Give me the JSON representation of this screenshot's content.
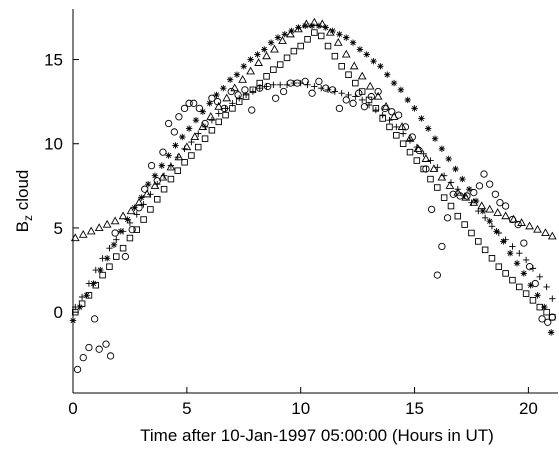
{
  "chart_data": {
    "type": "scatter",
    "xlabel": "Time after 10-Jan-1997 05:00:00 (Hours in UT)",
    "ylabel": {
      "main": "B",
      "sub": "z",
      "rest": " cloud"
    },
    "xlim": [
      0,
      21.3
    ],
    "ylim": [
      -4.8,
      18
    ],
    "xticks": [
      0,
      5,
      10,
      15,
      20
    ],
    "yticks": [
      0,
      5,
      10,
      15
    ],
    "grid": false,
    "legend": "none",
    "series": [
      {
        "marker": "circle",
        "x": [
          0.2,
          0.45,
          0.7,
          0.95,
          1.15,
          1.45,
          1.65,
          1.85,
          2.3,
          2.6,
          2.9,
          3.15,
          3.45,
          3.7,
          3.95,
          4.2,
          4.45,
          4.65,
          4.9,
          5.1,
          5.3,
          5.55,
          5.8,
          6.1,
          6.35,
          6.65,
          6.95,
          7.25,
          7.55,
          7.85,
          8.2,
          8.55,
          8.9,
          9.25,
          9.55,
          9.85,
          10.2,
          10.5,
          10.8,
          11.1,
          11.4,
          11.7,
          12.0,
          12.3,
          12.55,
          12.8,
          13.1,
          13.4,
          13.7,
          14.0,
          14.3,
          14.6,
          14.9,
          15.2,
          15.5,
          15.75,
          16.0,
          16.2,
          16.45,
          16.7,
          17.0,
          17.3,
          17.6,
          17.85,
          18.05,
          18.3,
          18.55,
          18.75,
          19.0,
          19.3,
          19.55,
          19.8,
          20.05,
          20.3,
          20.6,
          20.85,
          21.05
        ],
        "y": [
          -3.4,
          -2.7,
          -2.1,
          -0.4,
          -2.2,
          -1.9,
          -2.6,
          4.7,
          3.3,
          4.9,
          6.2,
          7.3,
          8.7,
          7.8,
          9.5,
          11.2,
          10.7,
          11.6,
          12.1,
          12.4,
          12.4,
          12.1,
          11.2,
          12.7,
          12.5,
          12.1,
          13.1,
          12.9,
          13.2,
          12.0,
          13.3,
          13.4,
          12.7,
          13.1,
          13.6,
          13.6,
          13.7,
          13.0,
          13.7,
          13.3,
          13.2,
          12.1,
          12.6,
          12.4,
          13.0,
          12.2,
          12.8,
          13.1,
          12.1,
          11.9,
          11.7,
          11.0,
          10.4,
          9.6,
          8.5,
          6.1,
          2.2,
          3.9,
          5.6,
          7.0,
          6.9,
          6.9,
          7.1,
          7.5,
          8.2,
          7.6,
          7.0,
          6.5,
          6.3,
          5.5,
          5.2,
          4.1,
          2.7,
          1.7,
          -0.4,
          -0.6,
          -0.3
        ]
      },
      {
        "marker": "asterisk",
        "x": [
          0.0,
          0.3,
          0.6,
          0.9,
          1.2,
          1.5,
          1.8,
          2.1,
          2.4,
          2.7,
          3.0,
          3.3,
          3.6,
          3.9,
          4.2,
          4.5,
          4.8,
          5.1,
          5.4,
          5.7,
          6.0,
          6.3,
          6.6,
          6.9,
          7.2,
          7.5,
          7.8,
          8.1,
          8.4,
          8.7,
          9.0,
          9.3,
          9.6,
          9.9,
          10.2,
          10.5,
          10.8,
          11.1,
          11.4,
          11.7,
          12.0,
          12.3,
          12.6,
          12.9,
          13.2,
          13.5,
          13.8,
          14.1,
          14.4,
          14.7,
          15.0,
          15.3,
          15.6,
          15.9,
          16.2,
          16.5,
          16.8,
          17.1,
          17.4,
          17.7,
          18.0,
          18.3,
          18.6,
          18.9,
          19.2,
          19.5,
          19.8,
          20.1,
          20.4,
          20.7,
          21.0
        ],
        "y": [
          -0.5,
          0.3,
          1.0,
          1.7,
          2.5,
          3.2,
          4.0,
          4.8,
          5.5,
          6.2,
          6.8,
          7.6,
          8.1,
          8.7,
          9.3,
          9.9,
          10.4,
          10.9,
          11.4,
          11.9,
          12.4,
          12.9,
          13.3,
          13.8,
          14.1,
          14.6,
          15.0,
          15.3,
          15.6,
          16.0,
          16.3,
          16.5,
          16.7,
          16.9,
          17.0,
          17.0,
          17.0,
          16.9,
          16.7,
          16.5,
          16.3,
          16.0,
          15.6,
          15.3,
          14.9,
          14.6,
          14.1,
          13.6,
          13.2,
          12.6,
          12.1,
          11.5,
          10.9,
          10.3,
          9.7,
          9.1,
          8.5,
          7.9,
          7.3,
          6.6,
          6.0,
          5.4,
          4.8,
          4.2,
          3.5,
          2.9,
          2.3,
          1.6,
          1.0,
          0.3,
          -1.2
        ]
      },
      {
        "marker": "triangle",
        "x": [
          0.1,
          0.45,
          0.8,
          1.15,
          1.5,
          1.85,
          2.2,
          2.55,
          2.9,
          3.25,
          3.6,
          3.95,
          4.3,
          4.65,
          5.0,
          5.35,
          5.7,
          6.05,
          6.4,
          6.75,
          7.1,
          7.45,
          7.8,
          8.15,
          8.5,
          8.85,
          9.2,
          9.55,
          9.9,
          10.25,
          10.6,
          10.95,
          11.3,
          11.65,
          12.0,
          12.35,
          12.7,
          13.05,
          13.4,
          13.75,
          14.1,
          14.45,
          14.8,
          15.15,
          15.5,
          15.85,
          16.2,
          16.55,
          16.9,
          17.25,
          17.6,
          17.95,
          18.3,
          18.65,
          19.0,
          19.35,
          19.7,
          20.05,
          20.4,
          20.75,
          21.05
        ],
        "y": [
          4.4,
          4.6,
          4.8,
          5.0,
          5.2,
          5.4,
          5.7,
          6.0,
          6.5,
          7.0,
          7.5,
          8.0,
          8.6,
          9.2,
          9.8,
          10.4,
          11.0,
          11.6,
          12.2,
          12.7,
          13.3,
          13.8,
          14.3,
          14.8,
          15.2,
          15.6,
          16.1,
          16.5,
          16.8,
          17.1,
          17.2,
          17.1,
          16.6,
          16.0,
          15.3,
          14.6,
          14.0,
          13.4,
          12.8,
          12.2,
          11.6,
          11.0,
          10.3,
          9.7,
          9.1,
          8.5,
          8.0,
          7.5,
          7.1,
          6.8,
          6.5,
          6.3,
          6.1,
          5.9,
          5.7,
          5.5,
          5.3,
          5.1,
          4.9,
          4.7,
          4.5
        ]
      },
      {
        "marker": "square",
        "x": [
          0.1,
          0.4,
          0.7,
          1.0,
          1.3,
          1.6,
          1.9,
          2.2,
          2.5,
          2.8,
          3.1,
          3.4,
          3.7,
          4.0,
          4.3,
          4.6,
          4.9,
          5.2,
          5.5,
          5.8,
          6.1,
          6.4,
          6.7,
          7.0,
          7.3,
          7.6,
          7.9,
          8.2,
          8.5,
          8.8,
          9.1,
          9.4,
          9.7,
          10.0,
          10.3,
          10.6,
          10.9,
          11.2,
          11.5,
          11.8,
          12.1,
          12.4,
          12.7,
          13.0,
          13.3,
          13.6,
          13.9,
          14.2,
          14.5,
          14.8,
          15.1,
          15.4,
          15.7,
          16.0,
          16.3,
          16.6,
          16.9,
          17.2,
          17.5,
          17.8,
          18.1,
          18.4,
          18.7,
          19.0,
          19.3,
          19.6,
          19.9,
          20.2,
          20.5,
          20.8,
          21.05
        ],
        "y": [
          0.0,
          0.5,
          1.0,
          1.6,
          2.2,
          2.7,
          3.3,
          3.8,
          4.4,
          4.9,
          5.5,
          6.1,
          6.7,
          7.3,
          7.9,
          8.4,
          8.9,
          9.3,
          9.8,
          10.3,
          10.8,
          11.3,
          11.7,
          12.1,
          12.5,
          12.8,
          13.2,
          13.6,
          14.0,
          14.4,
          14.7,
          15.1,
          15.5,
          15.8,
          16.2,
          16.6,
          16.4,
          15.8,
          15.2,
          14.6,
          14.1,
          13.6,
          13.1,
          12.6,
          12.1,
          11.5,
          11.0,
          10.5,
          10.0,
          9.5,
          9.0,
          8.5,
          7.9,
          7.4,
          6.8,
          6.3,
          5.7,
          5.2,
          4.7,
          4.2,
          3.7,
          3.2,
          2.7,
          2.3,
          1.9,
          1.5,
          1.1,
          0.7,
          0.3,
          0.0,
          -0.3
        ]
      },
      {
        "marker": "plus",
        "x": [
          0.1,
          0.4,
          0.7,
          1.0,
          1.3,
          1.6,
          1.9,
          2.2,
          2.5,
          2.8,
          3.1,
          3.4,
          3.7,
          4.0,
          4.3,
          4.6,
          4.9,
          5.2,
          5.5,
          5.8,
          6.1,
          6.4,
          6.7,
          7.0,
          7.3,
          7.6,
          7.9,
          8.2,
          8.5,
          8.8,
          9.1,
          9.4,
          9.7,
          10.0,
          10.3,
          10.6,
          10.9,
          11.2,
          11.5,
          11.8,
          12.1,
          12.4,
          12.7,
          13.0,
          13.3,
          13.6,
          13.9,
          14.2,
          14.5,
          14.8,
          15.1,
          15.4,
          15.7,
          16.0,
          16.3,
          16.6,
          16.9,
          17.2,
          17.5,
          17.8,
          18.1,
          18.4,
          18.7,
          19.0,
          19.3,
          19.6,
          19.9,
          20.2,
          20.5,
          20.8,
          21.05
        ],
        "y": [
          0.3,
          0.9,
          1.7,
          2.5,
          3.2,
          3.8,
          4.3,
          4.8,
          5.3,
          5.8,
          6.4,
          7.0,
          7.6,
          8.1,
          8.7,
          9.2,
          9.7,
          10.1,
          10.6,
          11.0,
          11.4,
          11.8,
          12.1,
          12.4,
          12.7,
          12.9,
          13.1,
          13.3,
          13.4,
          13.5,
          13.5,
          13.5,
          13.6,
          13.6,
          13.5,
          13.4,
          13.3,
          13.2,
          13.1,
          13.0,
          12.9,
          12.8,
          12.6,
          12.3,
          12.0,
          11.7,
          11.4,
          11.0,
          10.6,
          10.2,
          9.8,
          9.4,
          9.0,
          8.6,
          8.1,
          7.7,
          7.3,
          6.9,
          6.5,
          6.0,
          5.6,
          5.1,
          4.7,
          4.3,
          3.9,
          3.5,
          3.1,
          2.6,
          2.1,
          1.5,
          0.8
        ]
      }
    ]
  }
}
